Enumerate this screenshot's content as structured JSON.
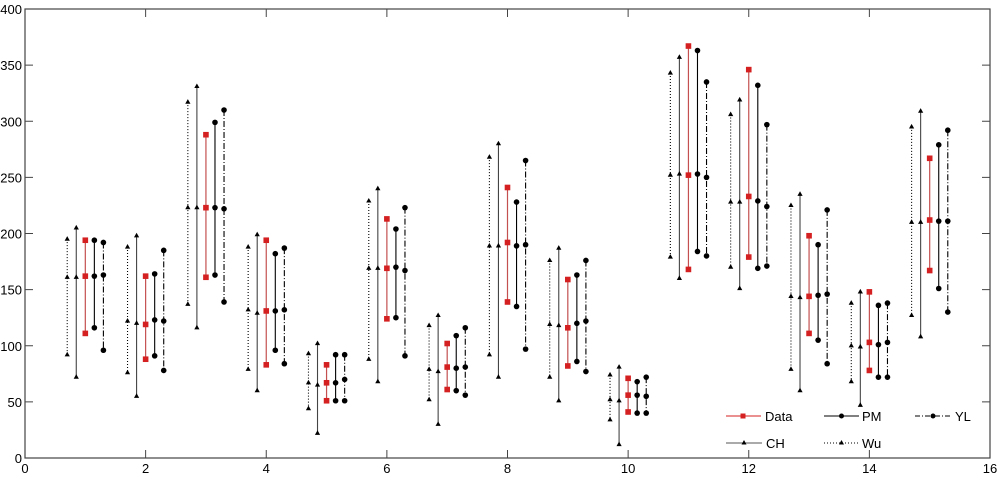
{
  "chart_data": {
    "type": "error-range",
    "title": "",
    "xlabel": "",
    "ylabel": "",
    "xlim": [
      0,
      16
    ],
    "ylim": [
      0,
      400
    ],
    "xticks": [
      0,
      2,
      4,
      6,
      8,
      10,
      12,
      14,
      16
    ],
    "yticks": [
      0,
      50,
      100,
      150,
      200,
      250,
      300,
      350,
      400
    ],
    "grid": false,
    "legend_position": "lower-right",
    "x": [
      1,
      2,
      3,
      4,
      5,
      6,
      7,
      8,
      9,
      10,
      11,
      12,
      13,
      14,
      15
    ],
    "series": [
      {
        "name": "Data",
        "color": "#d42020",
        "line_style": "solid",
        "marker": "square",
        "offset": 0,
        "low": [
          111,
          88,
          161,
          83,
          51,
          124,
          61,
          139,
          82,
          41,
          168,
          179,
          111,
          78,
          167
        ],
        "mid": [
          162,
          119,
          223,
          131,
          67,
          169,
          81,
          192,
          116,
          56,
          252,
          233,
          144,
          103,
          212
        ],
        "high": [
          194,
          162,
          288,
          194,
          83,
          213,
          102,
          241,
          159,
          71,
          367,
          346,
          198,
          148,
          267
        ]
      },
      {
        "name": "PM",
        "color": "#000000",
        "line_style": "solid",
        "marker": "circle",
        "offset": 0.15,
        "low": [
          116,
          91,
          163,
          96,
          51,
          125,
          60,
          135,
          86,
          40,
          184,
          169,
          105,
          72,
          151
        ],
        "mid": [
          162,
          123,
          223,
          131,
          67,
          170,
          80,
          189,
          120,
          56,
          253,
          229,
          145,
          101,
          211
        ],
        "high": [
          194,
          164,
          299,
          182,
          92,
          204,
          109,
          228,
          163,
          68,
          363,
          332,
          190,
          136,
          279
        ]
      },
      {
        "name": "YL",
        "color": "#000000",
        "line_style": "dashdot",
        "marker": "circle",
        "offset": 0.3,
        "low": [
          96,
          78,
          139,
          84,
          51,
          91,
          56,
          97,
          77,
          40,
          180,
          171,
          84,
          72,
          130
        ],
        "mid": [
          163,
          122,
          222,
          132,
          70,
          167,
          81,
          190,
          122,
          55,
          250,
          224,
          146,
          103,
          211
        ],
        "high": [
          192,
          185,
          310,
          187,
          92,
          223,
          116,
          265,
          176,
          72,
          335,
          297,
          221,
          138,
          292
        ]
      },
      {
        "name": "CH",
        "color": "#000000",
        "line_style": "solid",
        "marker": "triangle",
        "offset": -0.15,
        "low": [
          72,
          55,
          116,
          60,
          22,
          68,
          30,
          72,
          51,
          12,
          160,
          151,
          60,
          47,
          108
        ],
        "mid": [
          161,
          120,
          223,
          129,
          65,
          169,
          77,
          189,
          118,
          51,
          253,
          228,
          143,
          99,
          210
        ],
        "high": [
          205,
          198,
          331,
          199,
          102,
          240,
          127,
          280,
          187,
          81,
          357,
          319,
          235,
          148,
          309
        ]
      },
      {
        "name": "Wu",
        "color": "#000000",
        "line_style": "dotted",
        "marker": "triangle",
        "offset": -0.3,
        "low": [
          92,
          76,
          137,
          79,
          44,
          88,
          52,
          92,
          72,
          34,
          179,
          170,
          79,
          68,
          127
        ],
        "mid": [
          161,
          122,
          223,
          132,
          67,
          169,
          79,
          189,
          119,
          52,
          252,
          228,
          144,
          100,
          210
        ],
        "high": [
          195,
          188,
          317,
          188,
          93,
          229,
          118,
          268,
          176,
          74,
          343,
          306,
          225,
          138,
          295
        ]
      }
    ]
  },
  "axes": {
    "x_tick_labels": [
      "0",
      "2",
      "4",
      "6",
      "8",
      "10",
      "12",
      "14",
      "16"
    ],
    "y_tick_labels": [
      "0",
      "50",
      "100",
      "150",
      "200",
      "250",
      "300",
      "350",
      "400"
    ]
  },
  "legend": {
    "items": [
      {
        "label": "Data"
      },
      {
        "label": "PM"
      },
      {
        "label": "YL"
      },
      {
        "label": "CH"
      },
      {
        "label": "Wu"
      }
    ]
  }
}
